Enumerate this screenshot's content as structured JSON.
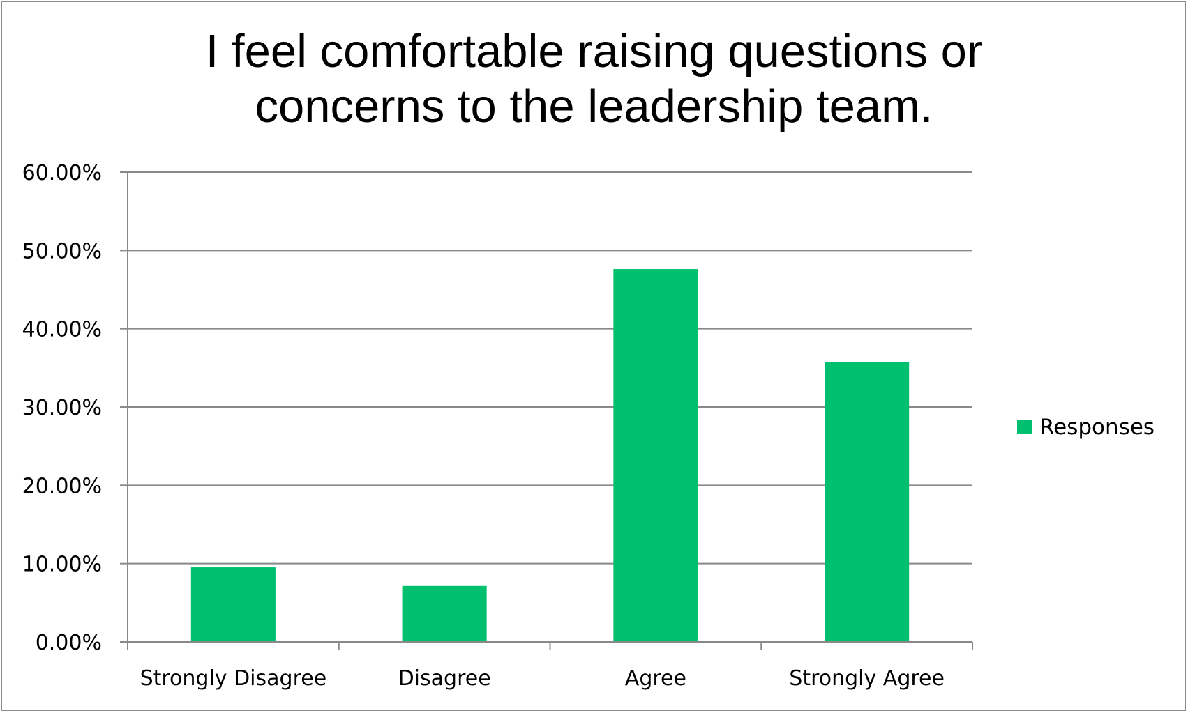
{
  "chart_data": {
    "type": "bar",
    "title_lines": [
      "I feel comfortable raising questions or",
      "concerns to the leadership team."
    ],
    "categories": [
      "Strongly Disagree",
      "Disagree",
      "Agree",
      "Strongly Agree"
    ],
    "series": [
      {
        "name": "Responses",
        "values": [
          9.52,
          7.14,
          47.62,
          35.71
        ],
        "color": "#00c070"
      }
    ],
    "ylim": [
      0,
      60
    ],
    "yticks": [
      0,
      10,
      20,
      30,
      40,
      50,
      60
    ],
    "ytick_labels": [
      "0.00%",
      "10.00%",
      "20.00%",
      "30.00%",
      "40.00%",
      "50.00%",
      "60.00%"
    ],
    "grid": true,
    "legend_position": "right",
    "colors": {
      "bar": "#00c070",
      "grid": "#898989",
      "axis": "#898989",
      "border": "#898989"
    }
  }
}
